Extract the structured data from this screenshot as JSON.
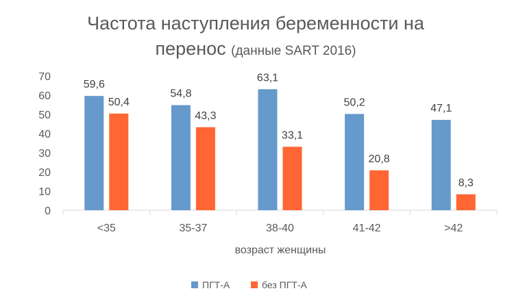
{
  "chart_data": {
    "type": "bar",
    "title_line1": "Частота наступления беременности на",
    "title_line2_main": "перенос ",
    "title_line2_sub": "(данные SART 2016)",
    "xlabel": "возраст женщины",
    "ylabel": "",
    "categories": [
      "<35",
      "35-37",
      "38-40",
      "41-42",
      ">42"
    ],
    "series": [
      {
        "name": "ПГТ-А",
        "color": "#6699cc",
        "values": [
          59.6,
          54.8,
          63.1,
          50.2,
          47.1
        ],
        "labels": [
          "59,6",
          "54,8",
          "63,1",
          "50,2",
          "47,1"
        ]
      },
      {
        "name": "без ПГТ-А",
        "color": "#ff6633",
        "values": [
          50.4,
          43.3,
          33.1,
          20.8,
          8.3
        ],
        "labels": [
          "50,4",
          "43,3",
          "33,1",
          "20,8",
          "8,3"
        ]
      }
    ],
    "ylim": [
      0,
      70
    ],
    "yticks": [
      0,
      10,
      20,
      30,
      40,
      50,
      60,
      70
    ],
    "grid": false,
    "legend_position": "bottom"
  }
}
